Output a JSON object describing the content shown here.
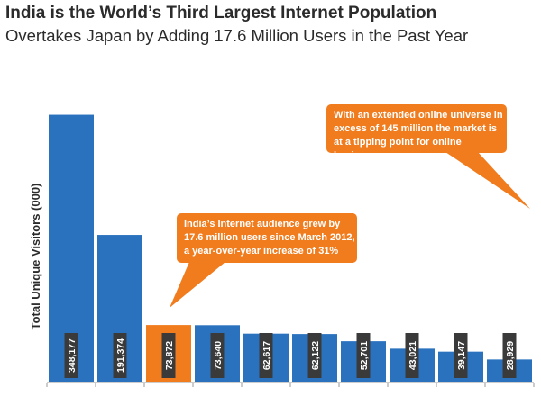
{
  "chart_data": {
    "type": "bar",
    "title": "India is the World’s Third Largest Internet Population",
    "subtitle": "Overtakes Japan by Adding 17.6 Million Users in the Past Year",
    "ylabel": "Total Unique Visitors (000)",
    "xlabel": "",
    "ylim": [
      0,
      350000
    ],
    "grid": false,
    "values": [
      348177,
      191374,
      73872,
      73640,
      62617,
      62122,
      52701,
      43021,
      39147,
      28929
    ],
    "value_labels": [
      "348,177",
      "191,374",
      "73,872",
      "73,640",
      "62,617",
      "62,122",
      "52,701",
      "43,021",
      "39,147",
      "28,929"
    ],
    "highlight_index": 2,
    "colors": {
      "bar": "#2a72be",
      "highlight": "#f07c1e",
      "callout": "#f07c1e",
      "label_bg": "#3a3a3a",
      "axis": "#999999"
    },
    "annotations": [
      {
        "id": "callout-1",
        "text": "India’s Internet audience grew by 17.6 million users since March 2012, a year-over-year increase of 31%"
      },
      {
        "id": "callout-2",
        "text": "With an extended online universe in excess of 145 million the market is at a tipping point for online businesses"
      }
    ]
  }
}
